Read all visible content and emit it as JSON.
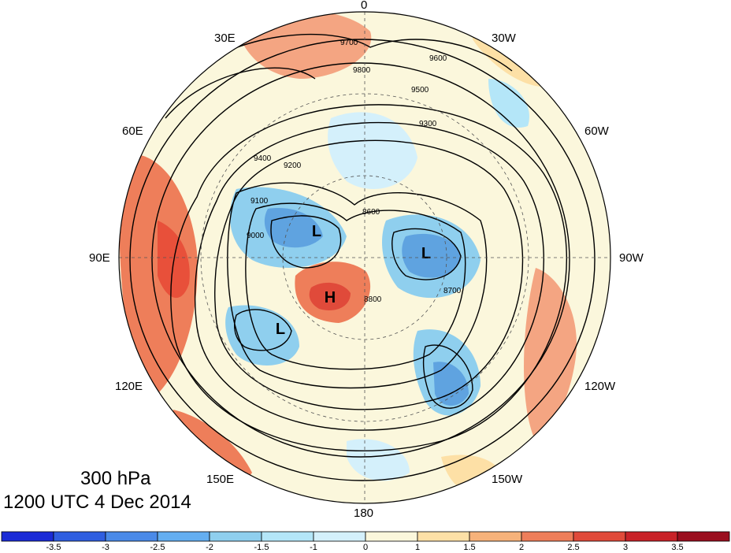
{
  "map": {
    "lon_labels": {
      "lon_0": "0",
      "lon_30e": "30E",
      "lon_30w": "30W",
      "lon_60e": "60E",
      "lon_60w": "60W",
      "lon_90e": "90E",
      "lon_90w": "90W",
      "lon_120e": "120E",
      "lon_120w": "120W",
      "lon_150e": "150E",
      "lon_150w": "150W",
      "lon_180": "180"
    },
    "contour_labels": [
      "9700",
      "9600",
      "9800",
      "9500",
      "9300",
      "9400",
      "9200",
      "9100",
      "9000",
      "8800",
      "8700",
      "8600"
    ],
    "pressure_centers": [
      "L",
      "L",
      "L",
      "H"
    ],
    "anomaly_colors": {
      "strong_warm": "#e8503a",
      "warm": "#f4a582",
      "weak_warm": "#fde8c4",
      "weak_cold": "#d4f0fb",
      "cold": "#8fcfee",
      "strong_cold": "#5fa3e0"
    }
  },
  "title": {
    "level": "300 hPa",
    "time": "1200 UTC 4 Dec 2014"
  },
  "colorbar": {
    "ticks": [
      "-3.5",
      "-3",
      "-2.5",
      "-2",
      "-1.5",
      "-1",
      "0",
      "1",
      "1.5",
      "2",
      "2.5",
      "3",
      "3.5"
    ],
    "colors": [
      "#1a2bd6",
      "#2f5ee0",
      "#4a8ae8",
      "#64aef0",
      "#8fcfee",
      "#b4e6f8",
      "#d4f0fb",
      "#fbf7dc",
      "#fde0a6",
      "#f6b27a",
      "#ee7e5a",
      "#e04a3a",
      "#c82228",
      "#9a0e1e"
    ]
  }
}
